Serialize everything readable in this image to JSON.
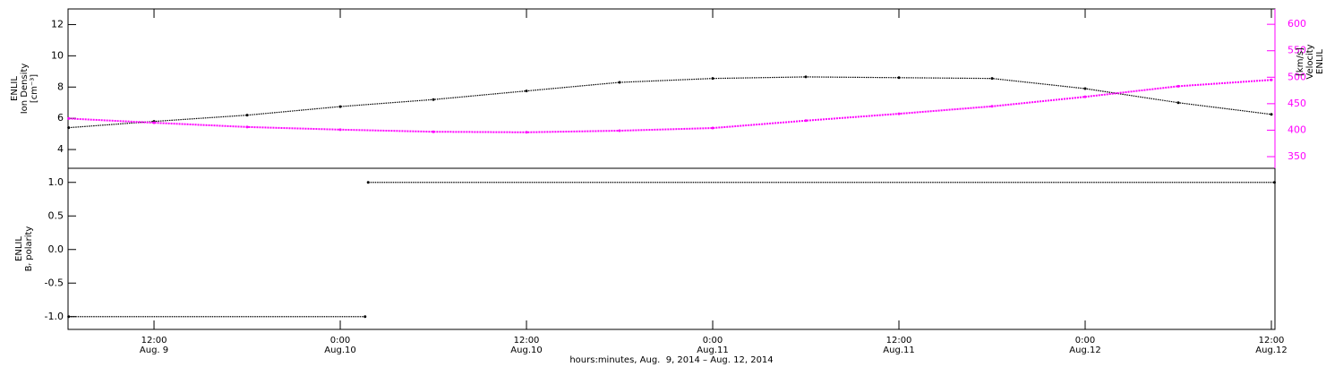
{
  "chart_data": [
    {
      "type": "line",
      "ylabel": [
        "ENLIL",
        "Ion Density",
        "[cm⁻³]"
      ],
      "y2label": [
        "ENLIL",
        "Velocity",
        "[km/s]"
      ],
      "xlim": [
        6.46,
        84.23
      ],
      "ylim": [
        2.8,
        13.0
      ],
      "yticks": [
        4,
        6,
        8,
        10,
        12
      ],
      "y2lim": [
        328,
        629
      ],
      "y2ticks": [
        350,
        400,
        450,
        500,
        550,
        600
      ],
      "y2color": "#ff00ff",
      "series": [
        {
          "color": "#000000",
          "x": [
            6.5,
            12,
            18,
            24,
            30,
            36,
            42,
            48,
            54,
            60,
            66,
            72,
            78,
            84
          ],
          "values": [
            5.4,
            5.8,
            6.2,
            6.75,
            7.2,
            7.75,
            8.3,
            8.55,
            8.65,
            8.6,
            8.55,
            7.9,
            7.0,
            6.25
          ]
        },
        {
          "color": "#ff00ff",
          "axis": "y2",
          "x": [
            6.5,
            12,
            18,
            24,
            30,
            36,
            42,
            48,
            54,
            60,
            66,
            72,
            78,
            84
          ],
          "values": [
            422,
            414,
            406,
            401,
            397,
            396,
            399,
            404,
            418,
            431,
            445,
            463,
            483,
            495
          ]
        }
      ]
    },
    {
      "type": "line",
      "ylabel": [
        "ENLIL",
        "Bᵣ polarity"
      ],
      "xlabel": "hours:minutes, Aug.  9, 2014 – Aug. 12, 2014",
      "xlim": [
        6.46,
        84.23
      ],
      "xticks": [
        {
          "value": 12,
          "label": "12:00"
        },
        {
          "value": 24,
          "label": "0:00"
        },
        {
          "value": 36,
          "label": "12:00"
        },
        {
          "value": 48,
          "label": "0:00"
        },
        {
          "value": 60,
          "label": "12:00"
        },
        {
          "value": 72,
          "label": "0:00"
        },
        {
          "value": 84,
          "label": "12:00"
        }
      ],
      "xtick_dates": [
        "Aug. 9",
        "Aug.10",
        "Aug.10",
        "Aug.11",
        "Aug.11",
        "Aug.12",
        "Aug.12"
      ],
      "ylim": [
        -1.19,
        1.21
      ],
      "yticks": [
        {
          "value": -1,
          "label": "-1.0"
        },
        -0.5,
        {
          "value": 0,
          "label": "0.0"
        },
        0.5,
        {
          "value": 1,
          "label": "1.0"
        }
      ],
      "series": [
        {
          "color": "#000000",
          "x": [
            6.5,
            25.6,
            25.7,
            25.8,
            84.2
          ],
          "values": [
            -1,
            -1,
            null,
            1,
            1
          ]
        }
      ]
    }
  ]
}
